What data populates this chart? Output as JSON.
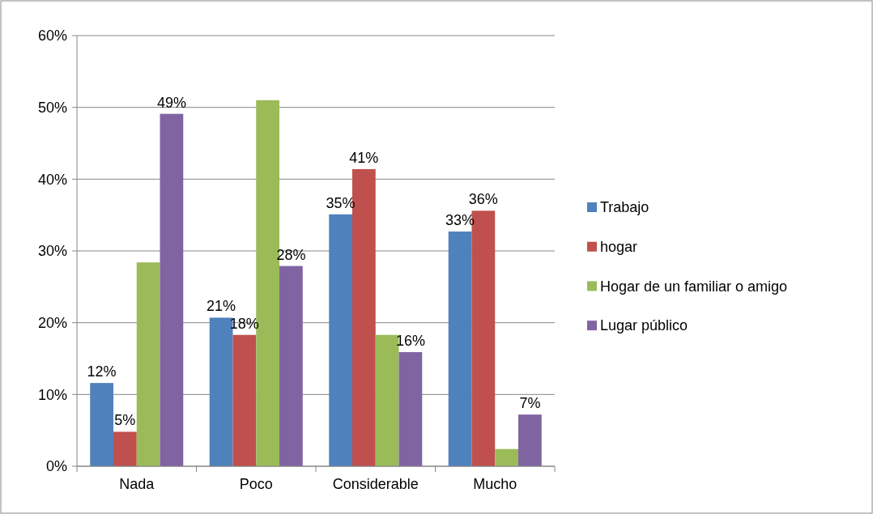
{
  "chart_data": {
    "type": "bar",
    "categories": [
      "Nada",
      "Poco",
      "Considerable",
      "Mucho"
    ],
    "ylim": [
      0,
      60
    ],
    "yticks": [
      {
        "value": 0,
        "label": "0%"
      },
      {
        "value": 10,
        "label": "10%"
      },
      {
        "value": 20,
        "label": "20%"
      },
      {
        "value": 30,
        "label": "30%"
      },
      {
        "value": 40,
        "label": "40%"
      },
      {
        "value": 50,
        "label": "50%"
      },
      {
        "value": 60,
        "label": "60%"
      }
    ],
    "grid": "y",
    "legend": "right",
    "series": [
      {
        "name": "Trabajo",
        "color": "#4f81bd",
        "values": [
          11.6,
          20.7,
          35.1,
          32.7
        ],
        "value_labels": [
          "12%",
          "21%",
          "35%",
          "33%"
        ]
      },
      {
        "name": "hogar",
        "color": "#c0504d",
        "values": [
          4.8,
          18.3,
          41.4,
          35.6
        ],
        "value_labels": [
          "5%",
          "18%",
          "41%",
          "36%"
        ]
      },
      {
        "name": "Hogar de un familiar o amigo",
        "color": "#9bbb59",
        "values": [
          28.4,
          51.0,
          18.3,
          2.4
        ],
        "value_labels": [
          null,
          null,
          null,
          null
        ]
      },
      {
        "name": "Lugar público",
        "color": "#8064a2",
        "values": [
          49.1,
          27.9,
          15.9,
          7.2
        ],
        "value_labels": [
          "49%",
          "28%",
          "16%",
          "7%"
        ]
      }
    ]
  }
}
